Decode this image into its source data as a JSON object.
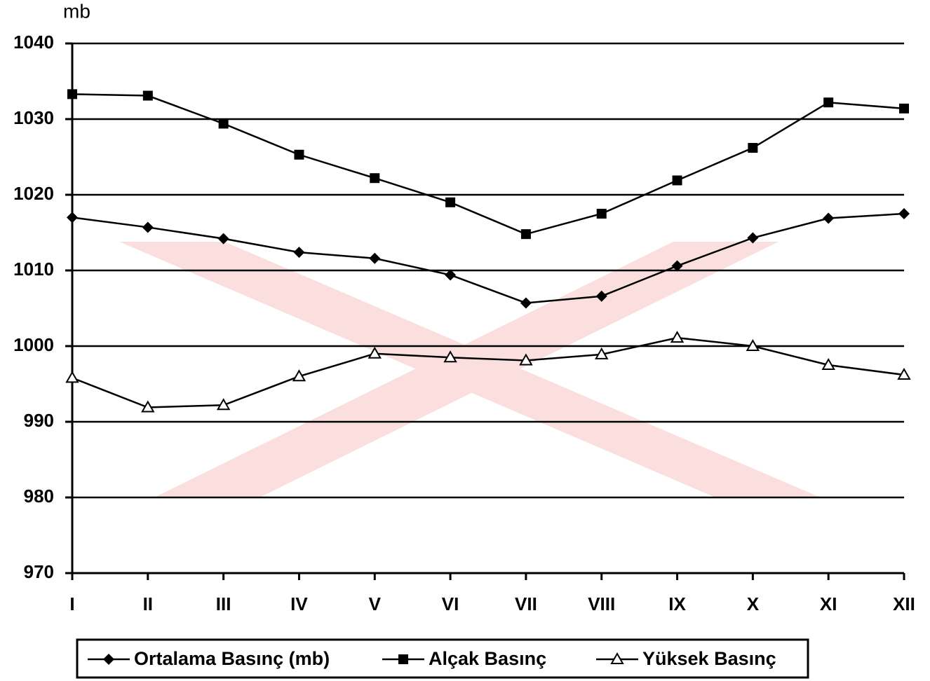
{
  "chart_data": {
    "type": "line",
    "y_label": "mb",
    "categories": [
      "I",
      "II",
      "III",
      "IV",
      "V",
      "VI",
      "VII",
      "VIII",
      "IX",
      "X",
      "XI",
      "XII"
    ],
    "series": [
      {
        "name": "Ortalama Basınç (mb)",
        "color": "#000000",
        "marker": "diamond",
        "values": [
          1017.0,
          1015.7,
          1014.2,
          1012.4,
          1011.6,
          1009.4,
          1005.7,
          1006.6,
          1010.6,
          1014.3,
          1016.9,
          1017.5
        ]
      },
      {
        "name": "Alçak Basınç",
        "color": "#000000",
        "marker": "square",
        "values": [
          1033.3,
          1033.1,
          1029.4,
          1025.3,
          1022.2,
          1019.0,
          1014.8,
          1017.5,
          1021.9,
          1026.2,
          1032.2,
          1031.4
        ]
      },
      {
        "name": "Yüksek Basınç",
        "color": "#000000",
        "marker": "triangle",
        "values": [
          995.8,
          991.9,
          992.2,
          996.0,
          999.0,
          998.5,
          998.1,
          998.9,
          1001.1,
          1000.0,
          997.5,
          996.2
        ]
      }
    ],
    "ylim": [
      970,
      1040
    ],
    "yticks": [
      970,
      980,
      990,
      1000,
      1010,
      1020,
      1030,
      1040
    ],
    "grid": true
  }
}
